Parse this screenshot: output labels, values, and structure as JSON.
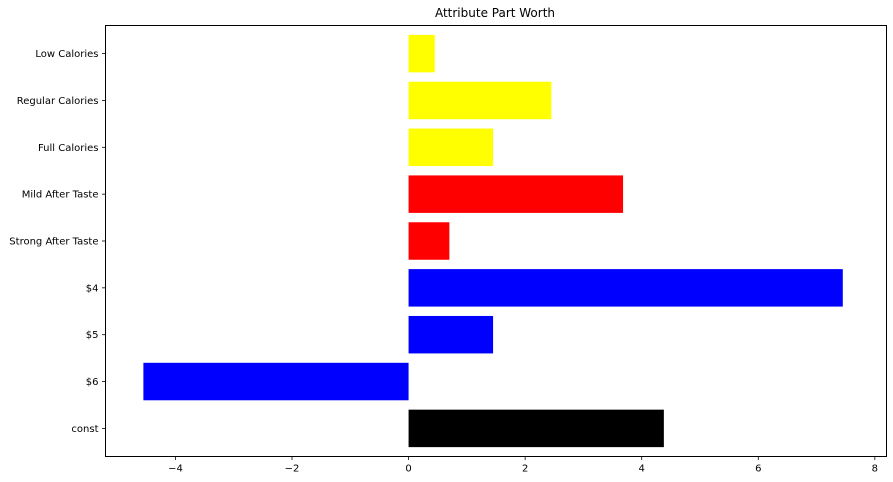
{
  "chart_data": {
    "type": "bar",
    "orientation": "horizontal",
    "title": "Attribute Part Worth",
    "xlabel": "",
    "ylabel": "",
    "categories": [
      "const",
      "$6",
      "$5",
      "$4",
      "Strong After Taste",
      "Mild After Taste",
      "Full Calories",
      "Regular Calories",
      "Low Calories"
    ],
    "values": [
      4.38,
      -4.55,
      1.45,
      7.45,
      0.7,
      3.68,
      1.45,
      2.45,
      0.45
    ],
    "colors": [
      "#000000",
      "#0000ff",
      "#0000ff",
      "#0000ff",
      "#ff0000",
      "#ff0000",
      "#ffff00",
      "#ffff00",
      "#ffff00"
    ],
    "xlim": [
      -5.2,
      8.2
    ],
    "xticks": [
      -4,
      -2,
      0,
      2,
      4,
      6,
      8
    ],
    "xtick_labels": [
      "−4",
      "−2",
      "0",
      "2",
      "4",
      "6",
      "8"
    ],
    "grid": false,
    "legend": "none"
  }
}
